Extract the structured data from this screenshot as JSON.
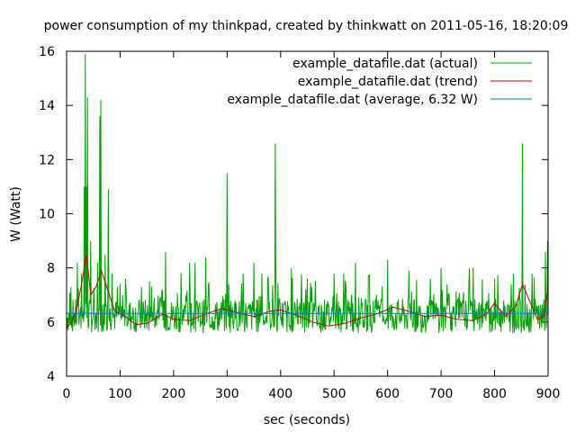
{
  "chart_data": {
    "type": "line",
    "title": "power consumption of my thinkpad, created by thinkwatt on 2011-05-16, 18:20:09",
    "xlabel": "sec (seconds)",
    "ylabel": "W (Watt)",
    "xlim": [
      0,
      900
    ],
    "ylim": [
      4,
      16
    ],
    "xticks": [
      0,
      100,
      200,
      300,
      400,
      500,
      600,
      700,
      800,
      900
    ],
    "yticks": [
      4,
      6,
      8,
      10,
      12,
      14,
      16
    ],
    "grid": false,
    "legend_position": "top-right",
    "series": [
      {
        "name": "example_datafile.dat (actual)",
        "color": "#00a000",
        "style": "noisy-line",
        "base_level": 6.0,
        "noise_amplitude": 0.9,
        "peaks": [
          {
            "x": 8,
            "y": 7.3
          },
          {
            "x": 20,
            "y": 8.2
          },
          {
            "x": 28,
            "y": 7.8
          },
          {
            "x": 33,
            "y": 11.0
          },
          {
            "x": 35,
            "y": 15.9
          },
          {
            "x": 37,
            "y": 11.0
          },
          {
            "x": 39,
            "y": 14.3
          },
          {
            "x": 45,
            "y": 9.0
          },
          {
            "x": 58,
            "y": 8.2
          },
          {
            "x": 62,
            "y": 13.6
          },
          {
            "x": 64,
            "y": 14.2
          },
          {
            "x": 72,
            "y": 8.5
          },
          {
            "x": 78,
            "y": 10.9
          },
          {
            "x": 85,
            "y": 7.8
          },
          {
            "x": 95,
            "y": 7.3
          },
          {
            "x": 110,
            "y": 7.6
          },
          {
            "x": 140,
            "y": 7.3
          },
          {
            "x": 155,
            "y": 7.5
          },
          {
            "x": 185,
            "y": 8.6
          },
          {
            "x": 230,
            "y": 8.2
          },
          {
            "x": 240,
            "y": 8.2
          },
          {
            "x": 260,
            "y": 8.4
          },
          {
            "x": 300,
            "y": 11.5
          },
          {
            "x": 330,
            "y": 7.8
          },
          {
            "x": 350,
            "y": 8.2
          },
          {
            "x": 365,
            "y": 7.8
          },
          {
            "x": 390,
            "y": 12.6
          },
          {
            "x": 420,
            "y": 8.0
          },
          {
            "x": 450,
            "y": 7.6
          },
          {
            "x": 500,
            "y": 7.8
          },
          {
            "x": 540,
            "y": 8.2
          },
          {
            "x": 565,
            "y": 7.7
          },
          {
            "x": 600,
            "y": 8.3
          },
          {
            "x": 640,
            "y": 7.9
          },
          {
            "x": 680,
            "y": 7.6
          },
          {
            "x": 700,
            "y": 8.0
          },
          {
            "x": 760,
            "y": 8.0
          },
          {
            "x": 800,
            "y": 7.6
          },
          {
            "x": 835,
            "y": 7.8
          },
          {
            "x": 852,
            "y": 12.6
          },
          {
            "x": 870,
            "y": 7.8
          },
          {
            "x": 895,
            "y": 8.6
          },
          {
            "x": 899,
            "y": 9.0
          }
        ]
      },
      {
        "name": "example_datafile.dat (trend)",
        "color": "#c00000",
        "points": [
          {
            "x": 0,
            "y": 5.8
          },
          {
            "x": 10,
            "y": 6.0
          },
          {
            "x": 20,
            "y": 6.6
          },
          {
            "x": 30,
            "y": 7.6
          },
          {
            "x": 37,
            "y": 8.5
          },
          {
            "x": 45,
            "y": 7.0
          },
          {
            "x": 55,
            "y": 7.3
          },
          {
            "x": 65,
            "y": 7.9
          },
          {
            "x": 75,
            "y": 7.3
          },
          {
            "x": 90,
            "y": 6.4
          },
          {
            "x": 110,
            "y": 6.2
          },
          {
            "x": 130,
            "y": 5.9
          },
          {
            "x": 150,
            "y": 5.95
          },
          {
            "x": 180,
            "y": 6.3
          },
          {
            "x": 200,
            "y": 6.1
          },
          {
            "x": 230,
            "y": 6.05
          },
          {
            "x": 260,
            "y": 6.3
          },
          {
            "x": 290,
            "y": 6.5
          },
          {
            "x": 320,
            "y": 6.35
          },
          {
            "x": 350,
            "y": 6.2
          },
          {
            "x": 380,
            "y": 6.4
          },
          {
            "x": 400,
            "y": 6.45
          },
          {
            "x": 430,
            "y": 6.25
          },
          {
            "x": 460,
            "y": 6.0
          },
          {
            "x": 490,
            "y": 5.85
          },
          {
            "x": 520,
            "y": 5.95
          },
          {
            "x": 550,
            "y": 6.15
          },
          {
            "x": 580,
            "y": 6.3
          },
          {
            "x": 610,
            "y": 6.55
          },
          {
            "x": 640,
            "y": 6.4
          },
          {
            "x": 670,
            "y": 6.2
          },
          {
            "x": 700,
            "y": 6.25
          },
          {
            "x": 730,
            "y": 6.1
          },
          {
            "x": 760,
            "y": 6.05
          },
          {
            "x": 785,
            "y": 6.3
          },
          {
            "x": 800,
            "y": 6.7
          },
          {
            "x": 820,
            "y": 6.2
          },
          {
            "x": 840,
            "y": 6.6
          },
          {
            "x": 852,
            "y": 7.4
          },
          {
            "x": 865,
            "y": 6.8
          },
          {
            "x": 880,
            "y": 6.1
          },
          {
            "x": 892,
            "y": 6.2
          },
          {
            "x": 900,
            "y": 7.3
          }
        ]
      },
      {
        "name": "example_datafile.dat (average, 6.32 W)",
        "color": "#0080c0",
        "points": [
          {
            "x": 0,
            "y": 6.32
          },
          {
            "x": 900,
            "y": 6.32
          }
        ]
      }
    ]
  }
}
